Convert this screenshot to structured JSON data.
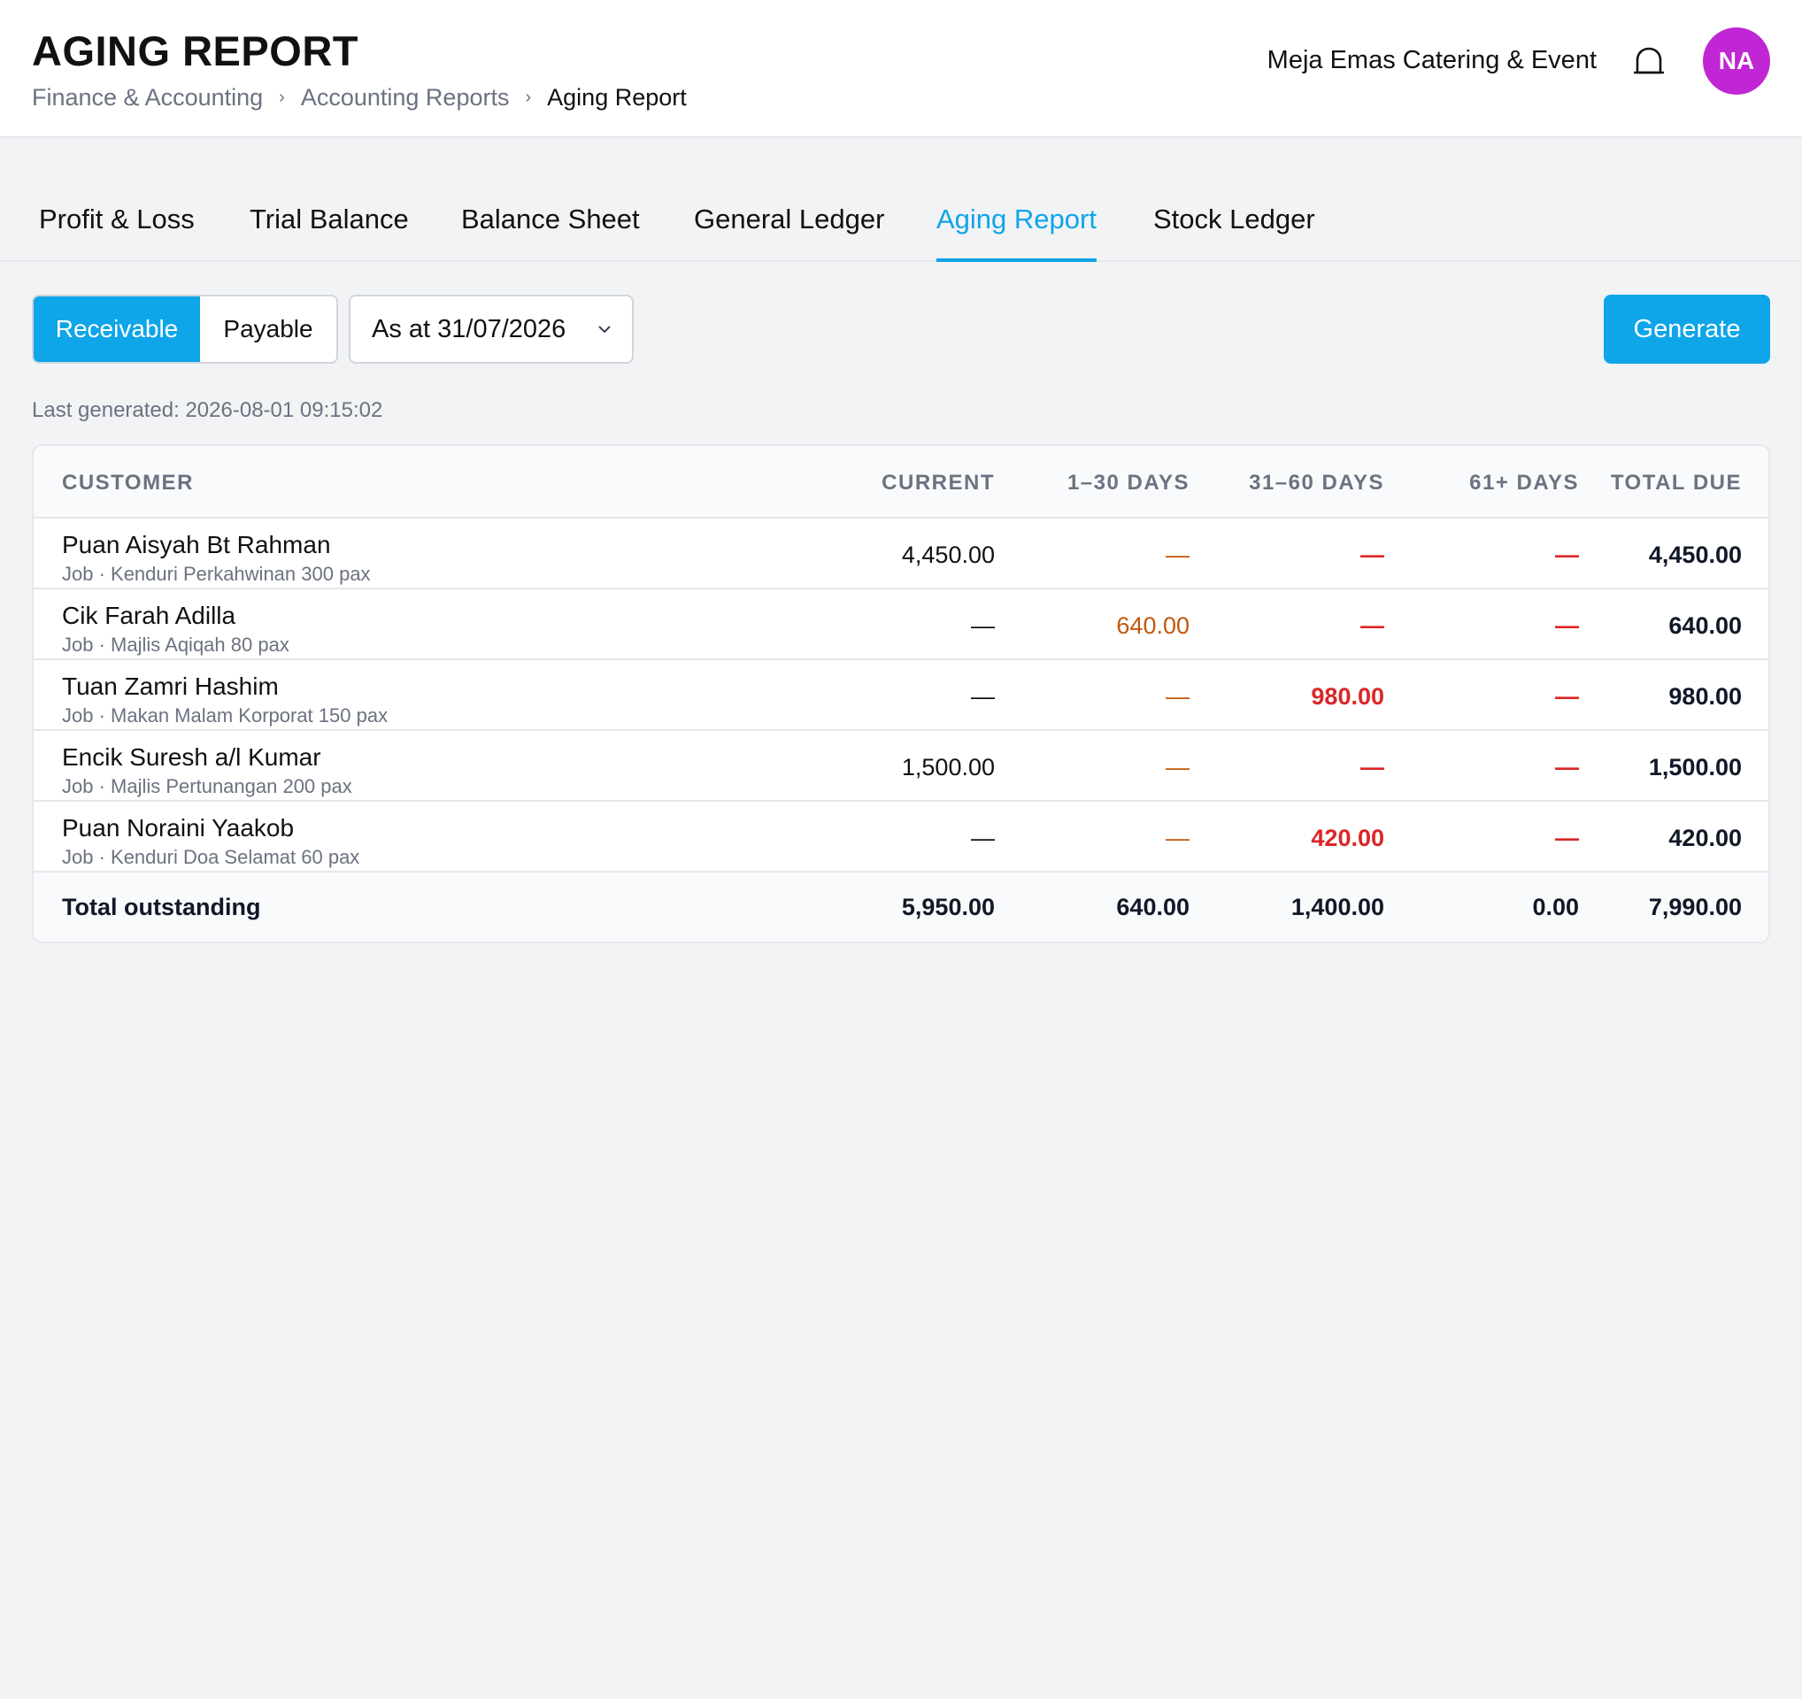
{
  "header": {
    "title": "AGING REPORT",
    "breadcrumb": [
      "Finance & Accounting",
      "Accounting Reports",
      "Aging Report"
    ],
    "company": "Meja Emas Catering & Event",
    "avatar_initials": "NA",
    "avatar_color": "#c026d3"
  },
  "tabs": [
    "Profit & Loss",
    "Trial Balance",
    "Balance Sheet",
    "General Ledger",
    "Aging Report",
    "Stock Ledger"
  ],
  "active_tab": "Aging Report",
  "toolbar": {
    "segments": [
      "Receivable",
      "Payable"
    ],
    "selected_segment": "Receivable",
    "date_select": "As at 31/07/2026",
    "generate_label": "Generate"
  },
  "last_generated": "Last generated: 2026-08-01 09:15:02",
  "table": {
    "columns": [
      "CUSTOMER",
      "CURRENT",
      "1–30 DAYS",
      "31–60 DAYS",
      "61+ DAYS",
      "TOTAL DUE"
    ],
    "rows": [
      {
        "name": "Puan Aisyah Bt Rahman",
        "sub": "Job · Kenduri Perkahwinan 300 pax",
        "current": "4,450.00",
        "d1_30": "—",
        "d31_60": "—",
        "d61": "—",
        "total": "4,450.00"
      },
      {
        "name": "Cik Farah Adilla",
        "sub": "Job · Majlis Aqiqah 80 pax",
        "current": "—",
        "d1_30": "640.00",
        "d31_60": "—",
        "d61": "—",
        "total": "640.00"
      },
      {
        "name": "Tuan Zamri Hashim",
        "sub": "Job · Makan Malam Korporat 150 pax",
        "current": "—",
        "d1_30": "—",
        "d31_60": "980.00",
        "d61": "—",
        "total": "980.00"
      },
      {
        "name": "Encik Suresh a/l Kumar",
        "sub": "Job · Majlis Pertunangan 200 pax",
        "current": "1,500.00",
        "d1_30": "—",
        "d31_60": "—",
        "d61": "—",
        "total": "1,500.00"
      },
      {
        "name": "Puan Noraini Yaakob",
        "sub": "Job · Kenduri Doa Selamat 60 pax",
        "current": "—",
        "d1_30": "—",
        "d31_60": "420.00",
        "d61": "—",
        "total": "420.00"
      }
    ],
    "footer": {
      "label": "Total outstanding",
      "current": "5,950.00",
      "d1_30": "640.00",
      "d31_60": "1,400.00",
      "d61": "0.00",
      "total": "7,990.00"
    }
  },
  "colors": {
    "accent": "#0ea5e9",
    "overdue_30": "#c2570c",
    "overdue_60": "#dc2626"
  }
}
